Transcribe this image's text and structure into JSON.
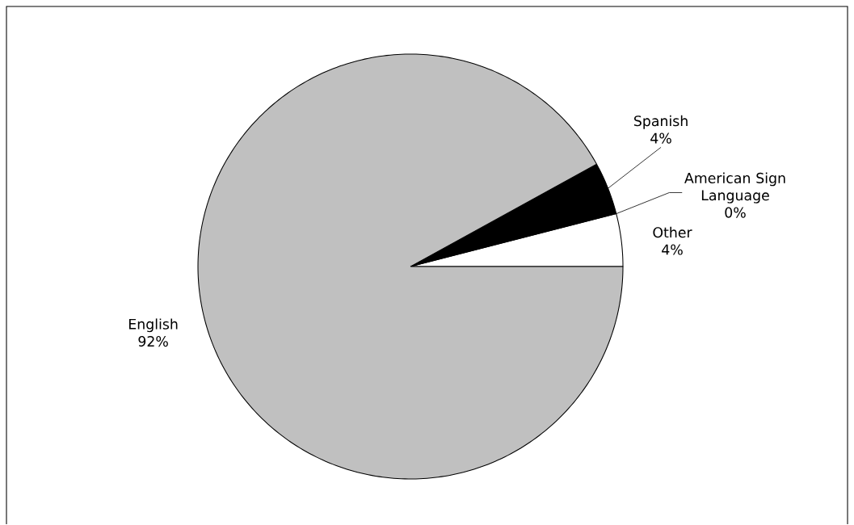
{
  "chart_data": {
    "type": "pie",
    "categories": [
      "Other",
      "American Sign Language",
      "Spanish",
      "English"
    ],
    "values": [
      4,
      0,
      4,
      92
    ],
    "colors": [
      "#ffffff",
      "#ffffff",
      "#000000",
      "#c0c0c0"
    ],
    "value_labels": [
      "4%",
      "0%",
      "4%",
      "92%"
    ]
  }
}
